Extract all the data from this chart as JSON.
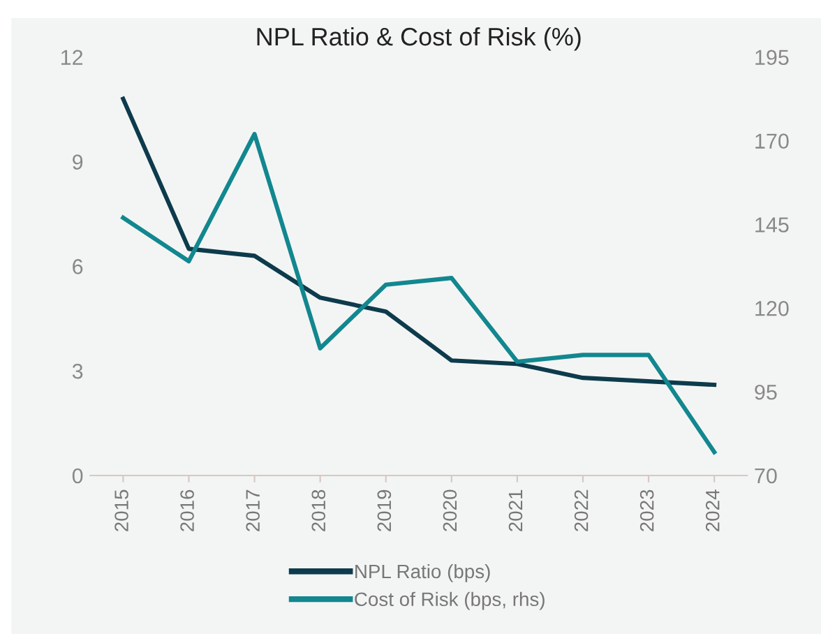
{
  "chart_data": {
    "type": "line",
    "title": "NPL Ratio & Cost of Risk (%)",
    "categories": [
      "2015",
      "2016",
      "2017",
      "2018",
      "2019",
      "2020",
      "2021",
      "2022",
      "2023",
      "2024"
    ],
    "series": [
      {
        "name": "NPL Ratio (bps)",
        "color": "#0d3b4c",
        "values": [
          10.8,
          6.5,
          6.3,
          5.1,
          4.7,
          3.3,
          3.2,
          2.8,
          2.7,
          2.6
        ]
      },
      {
        "name": "Cost of Risk (bps, rhs)",
        "color": "#12878f",
        "axis": "y2",
        "values": [
          147,
          134,
          172,
          108,
          127,
          129,
          104,
          106,
          106,
          77
        ]
      }
    ],
    "ylim": [
      0,
      12
    ],
    "yticks": [
      0,
      3,
      6,
      9,
      12
    ],
    "y2lim": [
      70,
      195
    ],
    "y2ticks": [
      70,
      95,
      120,
      145,
      170,
      195
    ],
    "grid": false,
    "legend": "bottom",
    "marker": "none",
    "line_style": "solid"
  }
}
